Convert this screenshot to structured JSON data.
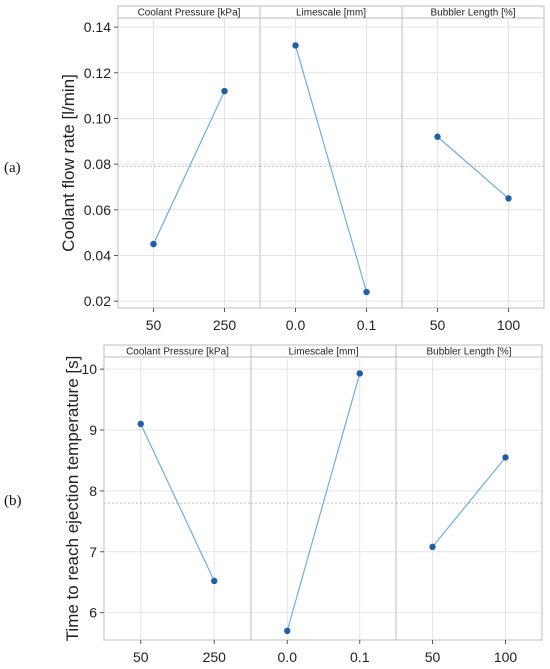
{
  "chart_data": [
    {
      "type": "line",
      "panel_tag": "(a)",
      "ylabel": "Coolant flow rate [l/min]",
      "ylim": [
        0.017,
        0.144
      ],
      "yticks": [
        "0.02",
        "0.04",
        "0.06",
        "0.08",
        "0.10",
        "0.12",
        "0.14"
      ],
      "reference_mean": 0.079,
      "grid": true,
      "factors": [
        {
          "name": "Coolant Pressure [kPa]",
          "levels": [
            "50",
            "250"
          ],
          "values": [
            0.045,
            0.112
          ]
        },
        {
          "name": "Limescale [mm]",
          "levels": [
            "0.0",
            "0.1"
          ],
          "values": [
            0.132,
            0.024
          ]
        },
        {
          "name": "Bubbler Length [%]",
          "levels": [
            "50",
            "100"
          ],
          "values": [
            0.092,
            0.065
          ]
        }
      ],
      "colors": {
        "line": "#6ab0de",
        "point": "#1f5fa8"
      }
    },
    {
      "type": "line",
      "panel_tag": "(b)",
      "ylabel": "Time to reach ejection temperature [s]",
      "ylim": [
        5.55,
        10.2
      ],
      "yticks": [
        "6",
        "7",
        "8",
        "9",
        "10"
      ],
      "reference_mean": 7.8,
      "grid": true,
      "factors": [
        {
          "name": "Coolant Pressure [kPa]",
          "levels": [
            "50",
            "250"
          ],
          "values": [
            9.1,
            6.52
          ]
        },
        {
          "name": "Limescale [mm]",
          "levels": [
            "0.0",
            "0.1"
          ],
          "values": [
            5.7,
            9.93
          ]
        },
        {
          "name": "Bubbler Length [%]",
          "levels": [
            "50",
            "100"
          ],
          "values": [
            7.08,
            8.55
          ]
        }
      ],
      "colors": {
        "line": "#6ab0de",
        "point": "#1f5fa8"
      }
    }
  ]
}
